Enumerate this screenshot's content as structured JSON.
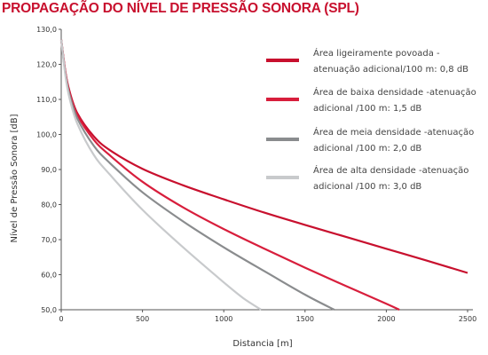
{
  "chart_data": {
    "type": "line",
    "title": "PROPAGAÇÃO DO NÍVEL DE PRESSÃO SONORA (SPL)",
    "xlabel": "Distancia [m]",
    "ylabel": "Nível de Pressão Sonora [dB]",
    "xlim": [
      0,
      2500
    ],
    "ylim": [
      50,
      130
    ],
    "x_ticks": [
      "0",
      "500",
      "1000",
      "1500",
      "2000",
      "2500"
    ],
    "y_ticks": [
      "50,0",
      "60,0",
      "70,0",
      "80,0",
      "90,0",
      "100,0",
      "110,0",
      "120,0",
      "130,0"
    ],
    "grid": false,
    "legend_position": "top-right",
    "series": [
      {
        "name": "Área ligeiramente povoada - atenuação adicional/100 m: 0,8 dB",
        "legend_lines": [
          "Área ligeiramente povoada -",
          "atenuação adicional/100 m: 0,8 dB"
        ],
        "color": "#c8102e",
        "x": [
          0,
          25,
          50,
          100,
          200,
          300,
          500,
          750,
          1000,
          1250,
          1500,
          1750,
          2000,
          2250,
          2500
        ],
        "y": [
          127,
          118,
          112.5,
          106,
          99.5,
          95.5,
          90.2,
          85.5,
          81.5,
          77.7,
          74.2,
          70.8,
          67.4,
          64,
          60.5
        ]
      },
      {
        "name": "Área de baixa densidade -atenuação adicional /100 m: 1,5 dB",
        "legend_lines": [
          "Área de baixa densidade -atenuação",
          "adicional /100 m: 1,5 dB"
        ],
        "color": "#d81e3c",
        "x": [
          0,
          25,
          50,
          100,
          200,
          300,
          500,
          750,
          1000,
          1250,
          1500,
          1750,
          2000,
          2080
        ],
        "y": [
          127,
          118,
          112,
          105.5,
          98.5,
          94,
          86.5,
          79.2,
          73,
          67.4,
          62,
          56.8,
          51.7,
          50
        ]
      },
      {
        "name": "Área de meia densidade -atenuação adicional /100 m: 2,0 dB",
        "legend_lines": [
          "Área de meia densidade -atenuação",
          "adicional /100 m: 2,0 dB"
        ],
        "color": "#8a8c8e",
        "x": [
          0,
          25,
          50,
          100,
          200,
          300,
          500,
          750,
          1000,
          1250,
          1500,
          1680
        ],
        "y": [
          127,
          117.5,
          111.5,
          104.5,
          96.8,
          91.8,
          83.5,
          75.2,
          67.8,
          61,
          54.3,
          50
        ]
      },
      {
        "name": "Área de alta densidade -atenuação adicional /100 m: 3,0 dB",
        "legend_lines": [
          "Área de alta densidade -atenuação",
          "adicional /100 m: 3,0 dB"
        ],
        "color": "#c8cacc",
        "x": [
          0,
          25,
          50,
          100,
          200,
          300,
          500,
          750,
          1000,
          1120,
          1230
        ],
        "y": [
          127,
          117,
          110.5,
          103,
          94.2,
          88.5,
          78.5,
          67.8,
          57.8,
          53.3,
          50
        ]
      }
    ]
  }
}
